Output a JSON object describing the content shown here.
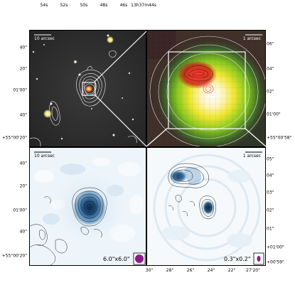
{
  "axes": {
    "top_ra_ticks": [
      "54s",
      "52s",
      "50s",
      "48s",
      "46s",
      "13h37m44s"
    ],
    "left_dec_ticks_top": [
      "40\"",
      "20\"",
      "01'00\"",
      "40\"",
      "+55°00'20\""
    ],
    "left_dec_ticks_bottom": [
      "40\"",
      "20\"",
      "01'00\"",
      "40\"",
      "+55°00'20\""
    ],
    "right_dec_ticks_top": [
      "06\"",
      "04\"",
      "02\"",
      "01'00\"",
      "+55°00'58\""
    ],
    "right_dec_ticks_bottom": [
      "05\"",
      "04\"",
      "03\"",
      "02\"",
      "01\"",
      "+01'00\"",
      "+00'59\""
    ],
    "bottom_ra_ticks": [
      "30\"",
      "28\"",
      "26\"",
      "24\"",
      "22\"",
      "27'20\""
    ]
  },
  "panels": {
    "top_left": {
      "scale_label": "10 arcsec"
    },
    "top_right": {
      "scale_label": "1 arcsec"
    },
    "bottom_left": {
      "scale_label": "10 arcsec",
      "beam_label": "6.0\"x6.0\""
    },
    "bottom_right": {
      "scale_label": "1 arcsec",
      "beam_label": "0.3\"x0.2\""
    }
  },
  "colors": {
    "beam_fill": "#8b1a8b",
    "radio_dark": "#1e4d78",
    "radio_light": "#e2eef7"
  }
}
